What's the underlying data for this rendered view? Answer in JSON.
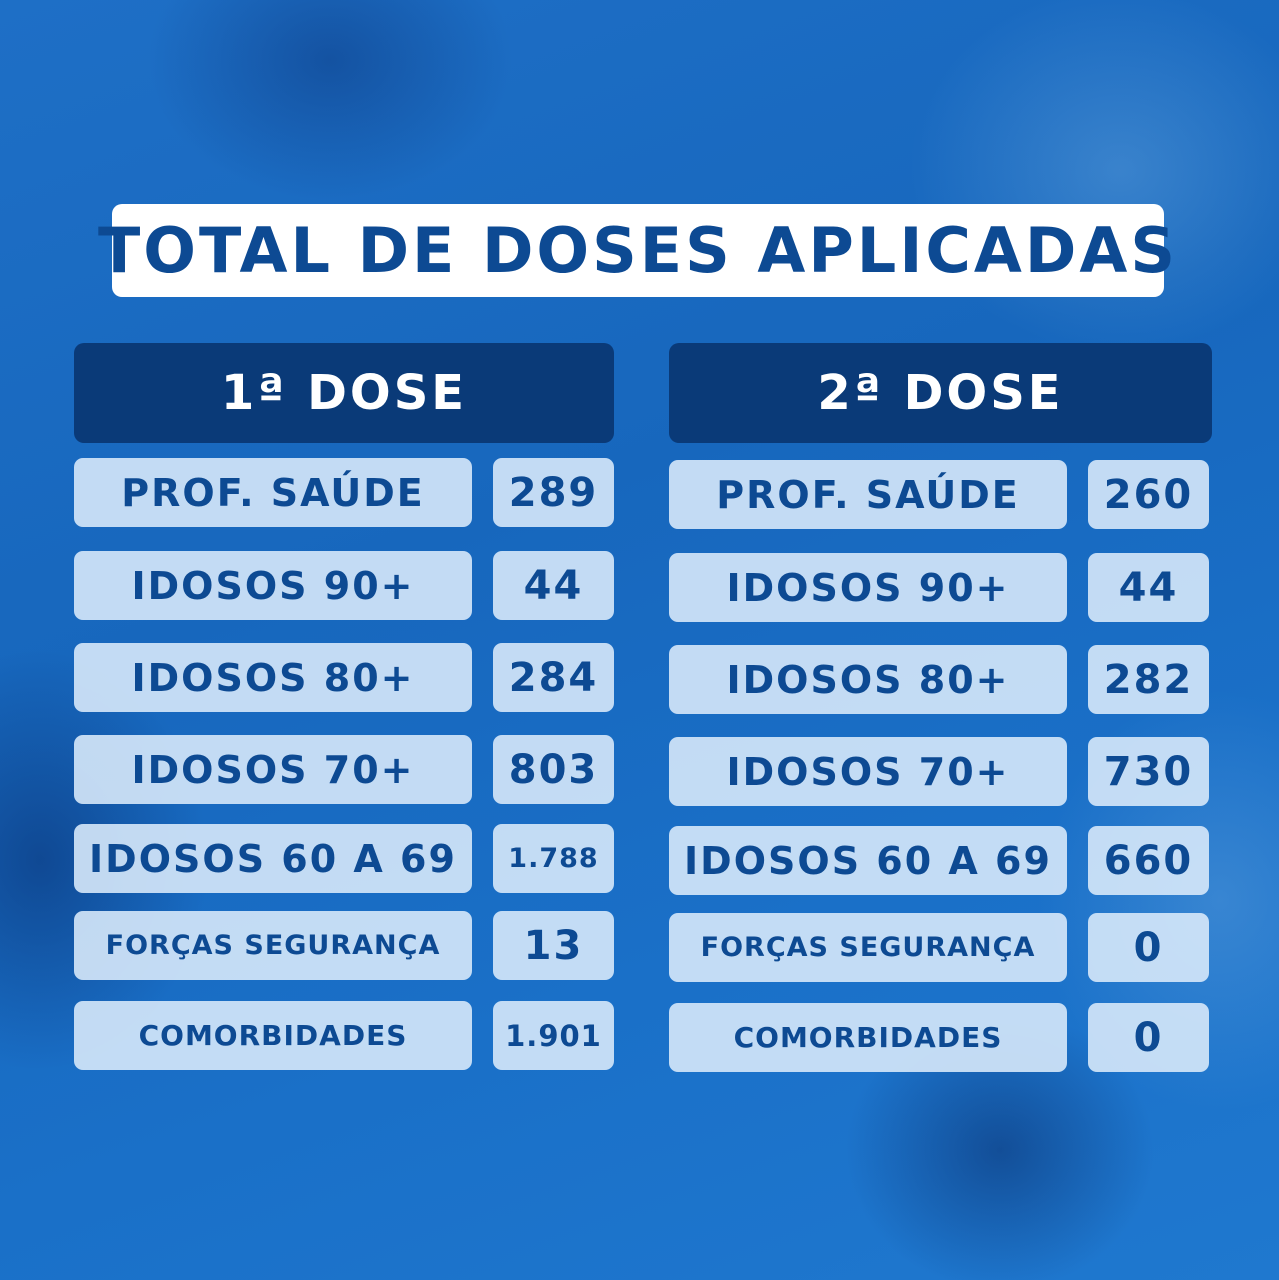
{
  "title": "TOTAL DE DOSES APLICADAS",
  "dose1": {
    "header": "1ª DOSE",
    "rows": [
      {
        "label": "PROF. SAÚDE",
        "value": "289"
      },
      {
        "label": "IDOSOS 90+",
        "value": "44"
      },
      {
        "label": "IDOSOS 80+",
        "value": "284"
      },
      {
        "label": "IDOSOS 70+",
        "value": "803"
      },
      {
        "label": "IDOSOS 60 A 69",
        "value": "1.788"
      },
      {
        "label": "FORÇAS SEGURANÇA",
        "value": "13"
      },
      {
        "label": "COMORBIDADES",
        "value": "1.901"
      }
    ]
  },
  "dose2": {
    "header": "2ª DOSE",
    "rows": [
      {
        "label": "PROF. SAÚDE",
        "value": "260"
      },
      {
        "label": "IDOSOS 90+",
        "value": "44"
      },
      {
        "label": "IDOSOS 80+",
        "value": "282"
      },
      {
        "label": "IDOSOS 70+",
        "value": "730"
      },
      {
        "label": "IDOSOS 60 A 69",
        "value": "660"
      },
      {
        "label": "FORÇAS SEGURANÇA",
        "value": "0"
      },
      {
        "label": "COMORBIDADES",
        "value": "0"
      }
    ]
  },
  "colors": {
    "header_bg": "#0a3a78",
    "text_blue": "#0d4a93",
    "cell_bg": "#d6e8fa"
  }
}
